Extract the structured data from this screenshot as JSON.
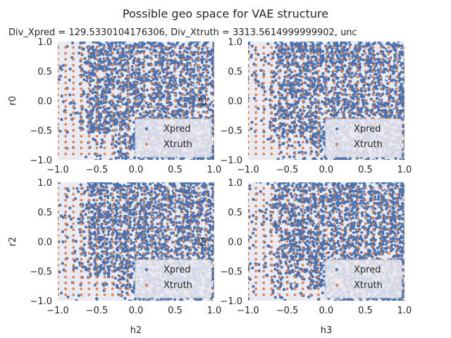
{
  "figure": {
    "title": "Possible geo space for VAE structure",
    "subtitle": "Div_Xpred = 129.5330104176306, Div_Xtruth = 3313.5614999999902, unc"
  },
  "colors": {
    "background": "#EAEAF2",
    "xpred": "#4C72B0",
    "xtruth": "#DD8452",
    "text": "#262626"
  },
  "chart_data": [
    {
      "type": "scatter",
      "xlabel": "",
      "ylabel": "r0",
      "xlim": [
        -1.0,
        1.0
      ],
      "ylim": [
        -1.0,
        1.0
      ],
      "x_ticks": [
        "−1.0",
        "−0.5",
        "0.0",
        "0.5",
        "1.0"
      ],
      "y_ticks": [
        "−1.0",
        "−0.5",
        "0.0",
        "0.5",
        "1.0"
      ],
      "grid": false,
      "legend": {
        "placement": "lower-right",
        "entries": [
          "Xpred",
          "Xtruth"
        ]
      },
      "series": [
        {
          "name": "Xpred",
          "description_range": {
            "x": [
              -1.0,
              1.0
            ],
            "y": [
              -1.0,
              1.0
            ]
          }
        },
        {
          "name": "Xtruth",
          "grid_x_values": [
            -1.0,
            -0.9,
            -0.8,
            -0.7,
            -0.6,
            -0.5,
            -0.4,
            -0.3,
            -0.2,
            -0.1,
            0.0,
            0.1,
            0.2,
            0.3,
            0.4,
            0.5,
            0.6,
            0.7,
            0.8,
            0.9,
            1.0
          ],
          "grid_y_values": [
            -0.9,
            -0.8,
            -0.7,
            -0.6,
            -0.5,
            -0.4,
            -0.3,
            -0.2,
            -0.1,
            0.0,
            0.1,
            0.2,
            0.3,
            0.4,
            0.5,
            0.6,
            0.7,
            0.8,
            0.9
          ]
        }
      ]
    },
    {
      "type": "scatter",
      "xlabel": "",
      "ylabel": "r1",
      "xlim": [
        -1.0,
        1.0
      ],
      "ylim": [
        -1.0,
        1.0
      ],
      "x_ticks": [
        "−1.0",
        "−0.5",
        "0.0",
        "0.5",
        "1.0"
      ],
      "y_ticks": [
        "−1.0",
        "−0.5",
        "0.0",
        "0.5",
        "1.0"
      ],
      "grid": false,
      "legend": {
        "placement": "lower-right",
        "entries": [
          "Xpred",
          "Xtruth"
        ]
      },
      "series": [
        {
          "name": "Xpred",
          "description_range": {
            "x": [
              -1.0,
              1.0
            ],
            "y": [
              -1.0,
              1.0
            ]
          }
        },
        {
          "name": "Xtruth",
          "grid_x_values": [
            -1.0,
            -0.9,
            -0.8,
            -0.7,
            -0.6,
            -0.5,
            -0.4,
            -0.3,
            -0.2,
            -0.1,
            0.0,
            0.1,
            0.2,
            0.3,
            0.4,
            0.5,
            0.6,
            0.7,
            0.8,
            0.9,
            1.0
          ],
          "grid_y_values": [
            -0.9,
            -0.8,
            -0.7,
            -0.6,
            -0.5,
            -0.4,
            -0.3,
            -0.2,
            -0.1,
            0.0,
            0.1,
            0.2,
            0.3,
            0.4,
            0.5,
            0.6,
            0.7,
            0.8,
            0.9
          ]
        }
      ]
    },
    {
      "type": "scatter",
      "xlabel": "h2",
      "ylabel": "r2",
      "xlim": [
        -1.0,
        1.0
      ],
      "ylim": [
        -1.0,
        1.0
      ],
      "x_ticks": [
        "−1.0",
        "−0.5",
        "0.0",
        "0.5",
        "1.0"
      ],
      "y_ticks": [
        "−1.0",
        "−0.5",
        "0.0",
        "0.5",
        "1.0"
      ],
      "grid": false,
      "legend": {
        "placement": "lower-right",
        "entries": [
          "Xpred",
          "Xtruth"
        ]
      },
      "series": [
        {
          "name": "Xpred",
          "description_range": {
            "x": [
              -1.0,
              1.0
            ],
            "y": [
              -1.0,
              1.0
            ]
          }
        },
        {
          "name": "Xtruth",
          "grid_x_values": [
            -1.0,
            -0.9,
            -0.8,
            -0.7,
            -0.6,
            -0.5,
            -0.4,
            -0.3,
            -0.2,
            -0.1,
            0.0,
            0.1,
            0.2,
            0.3,
            0.4,
            0.5,
            0.6,
            0.7,
            0.8,
            0.9,
            1.0
          ],
          "grid_y_values": [
            -0.9,
            -0.8,
            -0.7,
            -0.6,
            -0.5,
            -0.4,
            -0.3,
            -0.2,
            -0.1,
            0.0,
            0.1,
            0.2,
            0.3,
            0.4,
            0.5,
            0.6,
            0.7,
            0.8,
            0.9
          ]
        }
      ]
    },
    {
      "type": "scatter",
      "xlabel": "h3",
      "ylabel": "r3",
      "xlim": [
        -1.0,
        1.0
      ],
      "ylim": [
        -1.0,
        1.0
      ],
      "x_ticks": [
        "−1.0",
        "−0.5",
        "0.0",
        "0.5",
        "1.0"
      ],
      "y_ticks": [
        "−1.0",
        "−0.5",
        "0.0",
        "0.5",
        "1.0"
      ],
      "grid": false,
      "legend": {
        "placement": "lower-right",
        "entries": [
          "Xpred",
          "Xtruth"
        ]
      },
      "series": [
        {
          "name": "Xpred",
          "description_range": {
            "x": [
              -1.0,
              1.0
            ],
            "y": [
              -1.0,
              1.0
            ]
          }
        },
        {
          "name": "Xtruth",
          "grid_x_values": [
            -1.0,
            -0.9,
            -0.8,
            -0.7,
            -0.6,
            -0.5,
            -0.4,
            -0.3,
            -0.2,
            -0.1,
            0.0,
            0.1,
            0.2,
            0.3,
            0.4,
            0.5,
            0.6,
            0.7,
            0.8,
            0.9,
            1.0
          ],
          "grid_y_values": [
            -0.9,
            -0.8,
            -0.7,
            -0.6,
            -0.5,
            -0.4,
            -0.3,
            -0.2,
            -0.1,
            0.0,
            0.1,
            0.2,
            0.3,
            0.4,
            0.5,
            0.6,
            0.7,
            0.8,
            0.9
          ]
        }
      ]
    }
  ]
}
